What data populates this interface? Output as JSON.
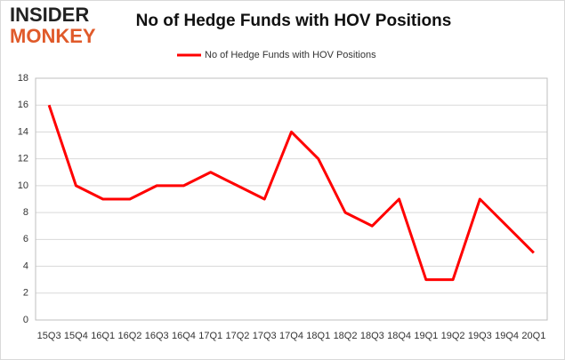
{
  "logo": [
    "INSIDER",
    "MONKEY"
  ],
  "chart_data": {
    "type": "line",
    "title": "No of Hedge Funds with HOV Positions",
    "categories": [
      "15Q3",
      "15Q4",
      "16Q1",
      "16Q2",
      "16Q3",
      "16Q4",
      "17Q1",
      "17Q2",
      "17Q3",
      "17Q4",
      "18Q1",
      "18Q2",
      "18Q3",
      "18Q4",
      "19Q1",
      "19Q2",
      "19Q3",
      "19Q4",
      "20Q1"
    ],
    "series": [
      {
        "name": "No of Hedge Funds with HOV Positions",
        "color": "#ff0000",
        "values": [
          16,
          10,
          9,
          9,
          10,
          10,
          11,
          10,
          9,
          14,
          12,
          8,
          7,
          9,
          3,
          3,
          9,
          7,
          5
        ]
      }
    ],
    "ylim": [
      0,
      18
    ],
    "yticks": [
      0,
      2,
      4,
      6,
      8,
      10,
      12,
      14,
      16,
      18
    ],
    "grid": true,
    "legend": "top"
  }
}
